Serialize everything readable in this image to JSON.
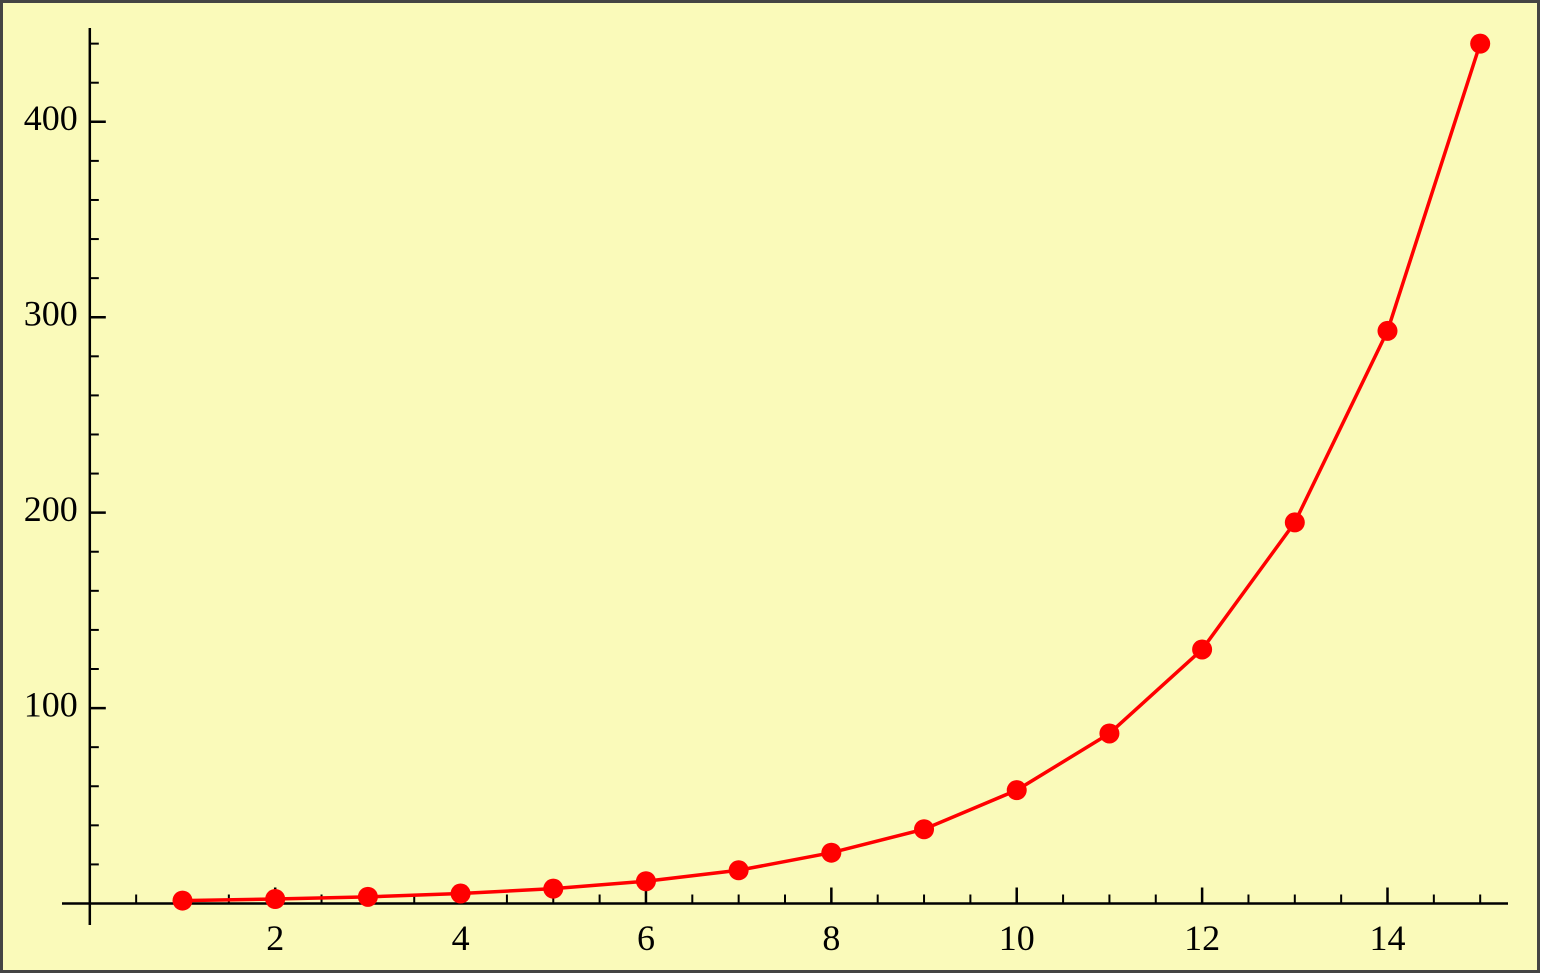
{
  "chart_data": {
    "type": "line",
    "x": [
      1,
      2,
      3,
      4,
      5,
      6,
      7,
      8,
      9,
      10,
      11,
      12,
      13,
      14,
      15
    ],
    "values": [
      1.5,
      2.3,
      3.4,
      5.1,
      7.6,
      11.4,
      17,
      26,
      38,
      58,
      87,
      130,
      195,
      293,
      440
    ],
    "color": "#ff0000",
    "markers": true,
    "background": "#fafaba",
    "xlim": [
      -0.3,
      15.3
    ],
    "ylim": [
      -11,
      448
    ],
    "xticks": [
      2,
      4,
      6,
      8,
      10,
      12,
      14
    ],
    "yticks": [
      100,
      200,
      300,
      400
    ],
    "xminorticks": [
      0.5,
      1,
      1.5,
      2.5,
      3,
      3.5,
      4.5,
      5,
      5.5,
      6.5,
      7,
      7.5,
      8.5,
      9,
      9.5,
      10.5,
      11,
      11.5,
      12.5,
      13,
      13.5,
      14.5,
      15
    ],
    "yminorticks": [
      20,
      40,
      60,
      80,
      120,
      140,
      160,
      180,
      220,
      240,
      260,
      280,
      320,
      340,
      360,
      380,
      420,
      440
    ]
  }
}
